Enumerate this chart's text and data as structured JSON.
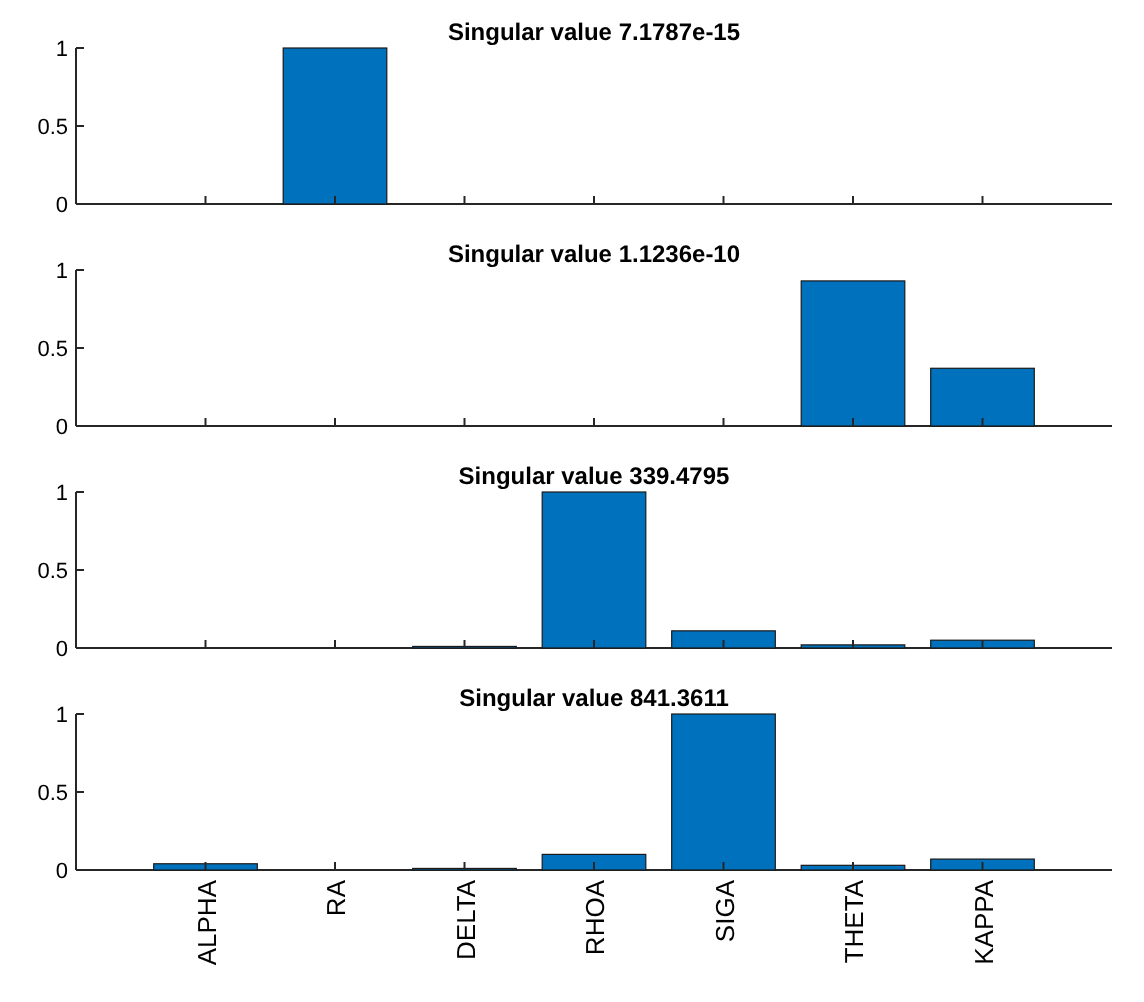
{
  "chart_data": [
    {
      "type": "bar",
      "title": "Singular value 7.1787e-15",
      "categories": [
        null,
        null,
        null,
        null,
        null,
        null,
        null
      ],
      "values": [
        0,
        1,
        0,
        0,
        0,
        0,
        0
      ],
      "color": "#0072bd",
      "ylim": [
        0,
        1
      ],
      "yticks": [
        0,
        0.5,
        1
      ],
      "tick_labels": "y"
    },
    {
      "type": "bar",
      "title": "Singular value 1.1236e-10",
      "categories": [
        null,
        null,
        null,
        null,
        null,
        null,
        null
      ],
      "values": [
        0,
        0,
        0,
        0,
        0,
        0.93,
        0.37
      ],
      "color": "#0072bd",
      "ylim": [
        0,
        1
      ],
      "yticks": [
        0,
        0.5,
        1
      ],
      "tick_labels": "y"
    },
    {
      "type": "bar",
      "title": "Singular value 339.4795",
      "categories": [
        null,
        null,
        null,
        null,
        null,
        null,
        null
      ],
      "values": [
        0,
        0,
        0.01,
        1,
        0.11,
        0.02,
        0.05
      ],
      "color": "#0072bd",
      "ylim": [
        0,
        1
      ],
      "yticks": [
        0,
        0.5,
        1
      ],
      "tick_labels": "y"
    },
    {
      "type": "bar",
      "title": "Singular value 841.3611",
      "categories": [
        "ALPHA",
        "RA",
        "DELTA",
        "RHOA",
        "SIGA",
        "THETA",
        "KAPPA"
      ],
      "values": [
        0.04,
        0,
        0.01,
        0.1,
        1,
        0.03,
        0.07
      ],
      "color": "#0072bd",
      "ylim": [
        0,
        1
      ],
      "yticks": [
        0,
        0.5,
        1
      ]
    }
  ]
}
